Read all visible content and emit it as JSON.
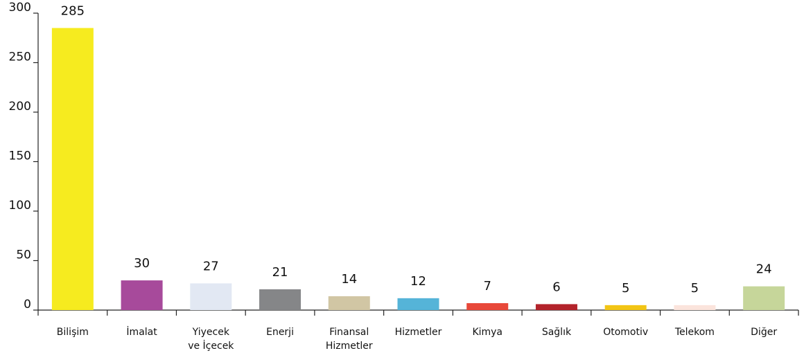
{
  "chart_data": {
    "type": "bar",
    "categories": [
      "Bilişim",
      "İmalat",
      "Yiyecek ve İçecek",
      "Enerji",
      "Finansal Hizmetler",
      "Hizmetler",
      "Kimya",
      "Sağlık",
      "Otomotiv",
      "Telekom",
      "Diğer"
    ],
    "values": [
      285,
      30,
      27,
      21,
      14,
      12,
      7,
      6,
      5,
      5,
      24
    ],
    "colors": [
      "#f6eb1f",
      "#a74a9b",
      "#e2e8f3",
      "#858688",
      "#d1c6a4",
      "#55b4d8",
      "#e8483a",
      "#b3232b",
      "#f2c515",
      "#fbe4dc",
      "#c6d69a"
    ],
    "ylim": [
      0,
      300
    ],
    "yticks": [
      0,
      50,
      100,
      150,
      200,
      250,
      300
    ],
    "grid": false
  }
}
